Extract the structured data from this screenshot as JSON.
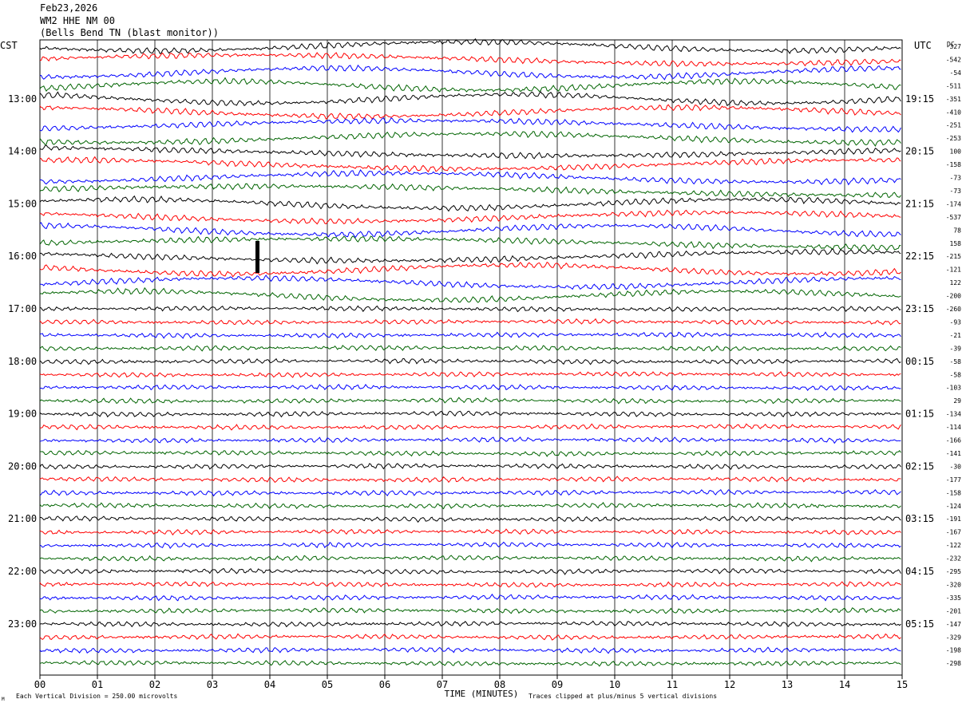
{
  "header": {
    "date": "Feb23,2026",
    "station": "WM2 HHE NM 00",
    "location": "(Bells Bend TN (blast monitor))"
  },
  "chart_data": {
    "type": "line",
    "title": "Feb23,2026",
    "left_tz": "CST",
    "right_tz": "UTC",
    "dc_label": "DC",
    "xlabel": "TIME (MINUTES)",
    "xticks": [
      "00",
      "01",
      "02",
      "03",
      "04",
      "05",
      "06",
      "07",
      "08",
      "09",
      "10",
      "11",
      "12",
      "13",
      "14",
      "15"
    ],
    "xlim": [
      0,
      15
    ],
    "left_hour_labels": [
      "13:00",
      "14:00",
      "15:00",
      "16:00",
      "17:00",
      "18:00",
      "19:00",
      "20:00",
      "21:00",
      "22:00",
      "23:00"
    ],
    "right_hour_labels": [
      "19:15",
      "20:15",
      "21:15",
      "22:15",
      "23:15",
      "00:15",
      "01:15",
      "02:15",
      "03:15",
      "04:15",
      "05:15"
    ],
    "dc_offsets": [
      -327,
      -542,
      -54,
      -511,
      -351,
      -410,
      -251,
      -253,
      100,
      -158,
      -73,
      -73,
      -174,
      -537,
      78,
      158,
      -215,
      -121,
      122,
      -200,
      -260,
      -93,
      -21,
      -39,
      -58,
      -58,
      -103,
      29,
      -134,
      -114,
      -166,
      -141,
      -30,
      -177,
      -158,
      -124,
      -191,
      -167,
      -122,
      -232,
      -295,
      -320,
      -335,
      -201,
      -147,
      -329,
      -198,
      -298
    ],
    "trace_colors": [
      "#000000",
      "#ff0000",
      "#0000ff",
      "#006400"
    ],
    "footer_left": "Each Vertical Division =  250.00 microvolts",
    "footer_right": "Traces clipped at plus/minus 5 vertical divisions",
    "footer_mark": "M"
  }
}
